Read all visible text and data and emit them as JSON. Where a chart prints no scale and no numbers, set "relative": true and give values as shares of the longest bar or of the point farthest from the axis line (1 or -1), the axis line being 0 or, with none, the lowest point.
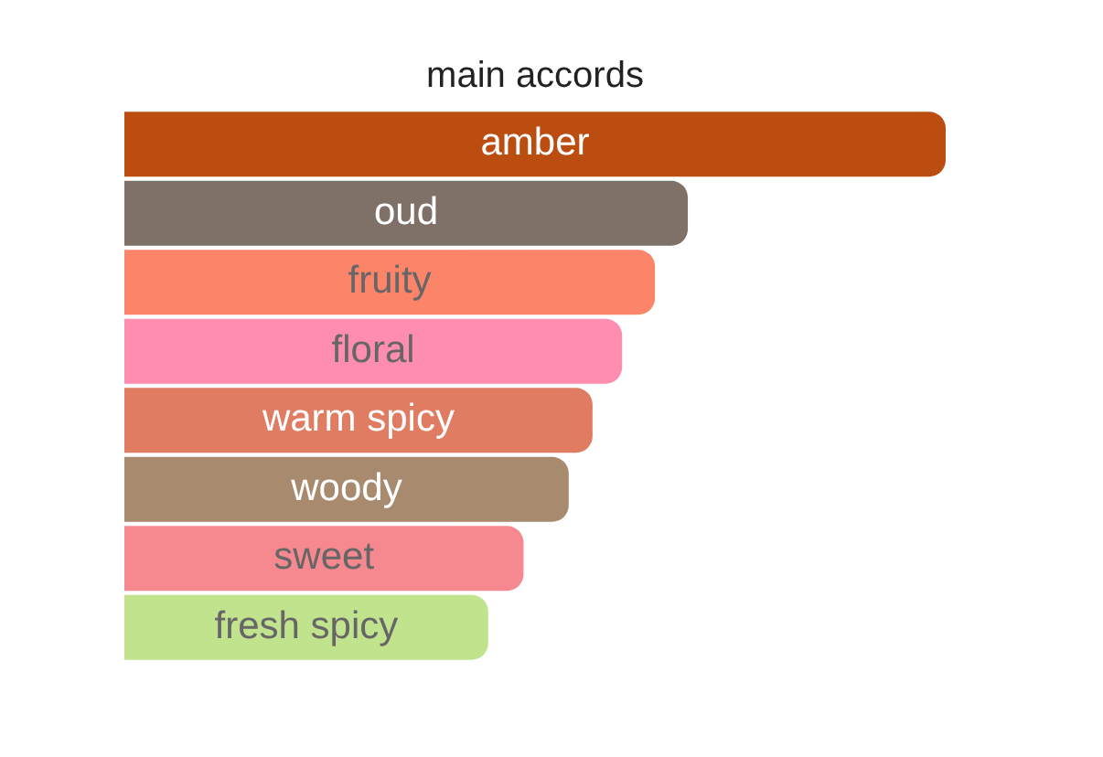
{
  "chart_data": {
    "type": "bar",
    "orientation": "horizontal",
    "relative": true,
    "title": "main accords",
    "categories": [
      "amber",
      "oud",
      "fruity",
      "floral",
      "warm spicy",
      "woody",
      "sweet",
      "fresh spicy"
    ],
    "values": [
      1,
      0.686,
      0.646,
      0.606,
      0.57,
      0.541,
      0.486,
      0.443
    ],
    "colors": [
      "#bc4d10",
      "#7f7167",
      "#fc8469",
      "#fe8db0",
      "#e07c61",
      "#a88a6e",
      "#f5898f",
      "#c1e38e"
    ],
    "legend": false
  }
}
